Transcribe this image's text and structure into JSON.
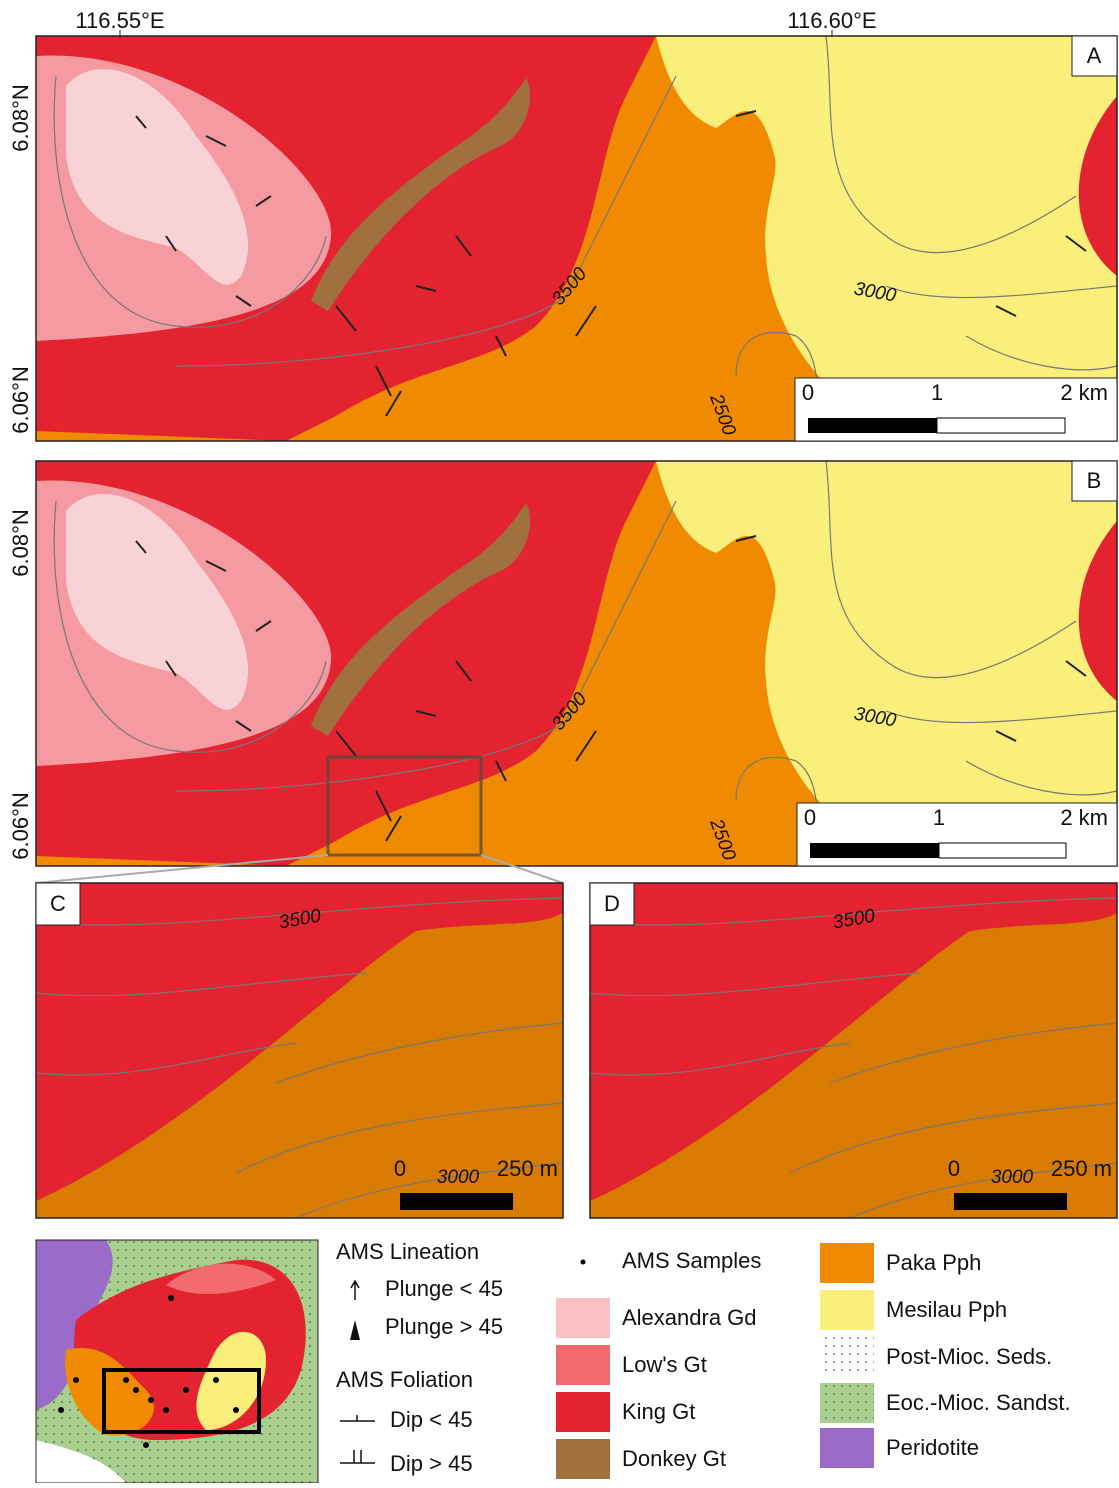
{
  "axes": {
    "lon_labels": [
      "116.55°E",
      "116.60°E"
    ],
    "lat_labels": [
      "6.08°N",
      "6.06°N"
    ]
  },
  "panels": [
    {
      "label": "A",
      "contour_labels": [
        "3500",
        "3000",
        "2500"
      ],
      "scale_labels": [
        "0",
        "1",
        "2 km"
      ]
    },
    {
      "label": "B",
      "contour_labels": [
        "3500",
        "3000",
        "2500"
      ],
      "scale_labels": [
        "0",
        "1",
        "2 km"
      ]
    },
    {
      "label": "C",
      "contour_labels": [
        "3500",
        "3000"
      ],
      "scale_labels": [
        "0",
        "250 m"
      ]
    },
    {
      "label": "D",
      "contour_labels": [
        "3500",
        "3000"
      ],
      "scale_labels": [
        "0",
        "250 m"
      ]
    }
  ],
  "legend": {
    "lineation": {
      "title": "AMS Lineation",
      "items": [
        "Plunge < 45",
        "Plunge > 45"
      ]
    },
    "foliation": {
      "title": "AMS Foliation",
      "items": [
        "Dip < 45",
        "Dip > 45"
      ]
    },
    "samples": "AMS Samples",
    "units": [
      {
        "name": "Alexandra Gd",
        "color": "#f9c1c5"
      },
      {
        "name": "Low's Gt",
        "color": "#f26b6f"
      },
      {
        "name": "King Gt",
        "color": "#e3232f"
      },
      {
        "name": "Donkey Gt",
        "color": "#a0703f"
      },
      {
        "name": "Paka Pph",
        "color": "#f08a00"
      },
      {
        "name": "Mesilau Pph",
        "color": "#f9ef7a"
      },
      {
        "name": "Post-Mioc. Seds.",
        "color": "#ffffff"
      },
      {
        "name": "Eoc.-Mioc. Sandst.",
        "color": "#a9d08e"
      },
      {
        "name": "Peridotite",
        "color": "#9b6bc9"
      }
    ]
  }
}
